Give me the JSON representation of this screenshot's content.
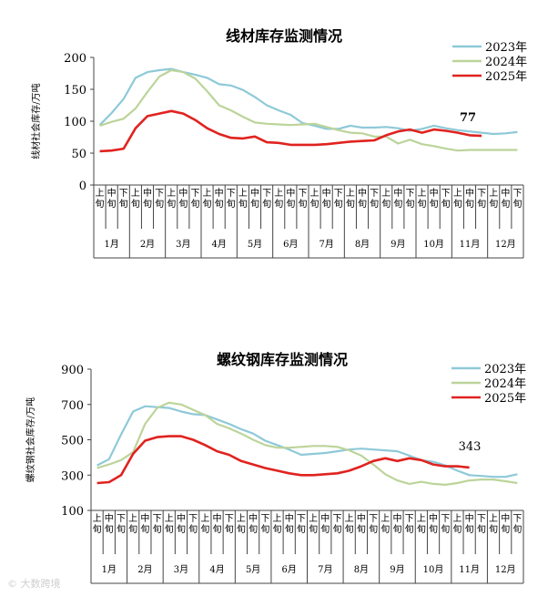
{
  "colors": {
    "2023年": "#8ec9d8",
    "2024年": "#bcd49a",
    "2025年": "#e0231f"
  },
  "months": [
    "1月",
    "2月",
    "3月",
    "4月",
    "5月",
    "6月",
    "7月",
    "8月",
    "9月",
    "10月",
    "11月",
    "12月"
  ],
  "periods": [
    "上旬",
    "中旬",
    "下旬"
  ],
  "chart_data": [
    {
      "type": "line",
      "title": "线材库存监测情况",
      "ylabel": "线材社会库存/万吨",
      "ylim": [
        0,
        200
      ],
      "yticks": [
        0,
        50,
        100,
        150,
        200
      ],
      "legend_position": "top-right",
      "series": [
        {
          "name": "2023年",
          "values": [
            94,
            113,
            135,
            168,
            177,
            180,
            182,
            177,
            173,
            168,
            158,
            156,
            149,
            138,
            125,
            117,
            110,
            97,
            93,
            88,
            88,
            93,
            90,
            90,
            91,
            89,
            85,
            88,
            93,
            89,
            86,
            84,
            82,
            80,
            81,
            83
          ]
        },
        {
          "name": "2024年",
          "values": [
            93,
            99,
            104,
            120,
            146,
            170,
            180,
            177,
            167,
            147,
            125,
            117,
            107,
            98,
            96,
            95,
            94,
            95,
            96,
            91,
            86,
            82,
            81,
            76,
            76,
            65,
            71,
            64,
            61,
            57,
            54,
            55,
            55,
            55,
            55,
            55
          ]
        },
        {
          "name": "2025年",
          "values": [
            53,
            54,
            57,
            89,
            108,
            112,
            116,
            112,
            102,
            89,
            80,
            74,
            73,
            76,
            67,
            66,
            63,
            63,
            63,
            64,
            66,
            68,
            69,
            70,
            78,
            84,
            87,
            82,
            87,
            85,
            82,
            78,
            77
          ]
        }
      ],
      "annotation": {
        "text": "77"
      }
    },
    {
      "type": "line",
      "title": "螺纹钢库存监测情况",
      "ylabel": "螺纹钢社会库存/万吨",
      "ylim": [
        100,
        900
      ],
      "yticks": [
        100,
        300,
        500,
        700,
        900
      ],
      "legend_position": "top-right",
      "series": [
        {
          "name": "2023年",
          "values": [
            355,
            390,
            530,
            660,
            690,
            685,
            680,
            660,
            645,
            640,
            615,
            590,
            560,
            535,
            495,
            470,
            445,
            415,
            420,
            425,
            435,
            445,
            450,
            445,
            440,
            435,
            410,
            385,
            375,
            355,
            325,
            300,
            295,
            290,
            290,
            305
          ]
        },
        {
          "name": "2024年",
          "values": [
            340,
            360,
            385,
            430,
            590,
            680,
            710,
            700,
            670,
            640,
            590,
            565,
            535,
            500,
            470,
            455,
            455,
            460,
            465,
            465,
            460,
            440,
            410,
            360,
            305,
            270,
            250,
            262,
            250,
            245,
            255,
            270,
            275,
            275,
            265,
            255
          ]
        },
        {
          "name": "2025年",
          "values": [
            255,
            260,
            300,
            420,
            495,
            515,
            520,
            520,
            500,
            470,
            435,
            415,
            380,
            360,
            340,
            325,
            310,
            300,
            300,
            305,
            310,
            325,
            350,
            380,
            395,
            380,
            395,
            385,
            360,
            350,
            350,
            343
          ]
        }
      ],
      "annotation": {
        "text": "343"
      }
    }
  ]
}
